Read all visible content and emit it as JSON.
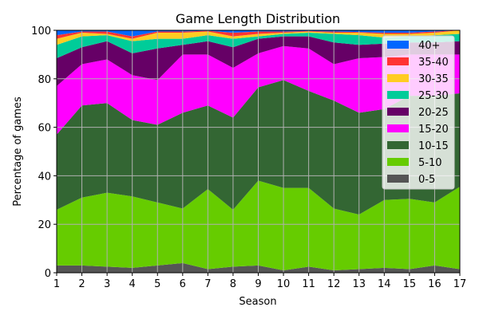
{
  "chart_data": {
    "type": "area",
    "stacked": true,
    "title": "Game Length Distribution",
    "xlabel": "Season",
    "ylabel": "Percentage of games",
    "x": [
      1,
      2,
      3,
      4,
      5,
      6,
      7,
      8,
      9,
      10,
      11,
      12,
      13,
      14,
      15,
      16,
      17
    ],
    "xlim": [
      1,
      17
    ],
    "ylim": [
      0,
      100
    ],
    "yticks": [
      0,
      20,
      40,
      60,
      80,
      100
    ],
    "grid": true,
    "legend_position": "top-right",
    "series": [
      {
        "name": "0-5",
        "color": "#555555",
        "values": [
          3,
          3,
          2.5,
          2,
          3,
          4,
          1.5,
          2.5,
          3,
          1,
          2.5,
          1,
          1.5,
          2,
          1.5,
          3,
          1.5
        ]
      },
      {
        "name": "5-10",
        "color": "#66cc00",
        "values": [
          23,
          28,
          30.5,
          29.5,
          26,
          22.5,
          33,
          23.5,
          35,
          34,
          32.5,
          25.5,
          22.5,
          28,
          29,
          26,
          34
        ]
      },
      {
        "name": "10-15",
        "color": "#336633",
        "values": [
          31,
          38,
          37,
          31.5,
          32,
          39.5,
          34.5,
          38,
          38.5,
          44.5,
          40,
          44.5,
          42,
          37.5,
          42.5,
          44,
          38.5
        ]
      },
      {
        "name": "15-20",
        "color": "#ff00ff",
        "values": [
          20,
          17,
          18,
          18.5,
          18.5,
          24,
          21,
          20.5,
          14,
          14,
          17.5,
          15,
          22.5,
          21.5,
          17,
          17,
          16
        ]
      },
      {
        "name": "20-25",
        "color": "#660066",
        "values": [
          11.5,
          7,
          7.5,
          9,
          13,
          4,
          5.5,
          8.5,
          6,
          4,
          5,
          9,
          5.5,
          5.5,
          5,
          5,
          5.5
        ]
      },
      {
        "name": "25-30",
        "color": "#00cc99",
        "values": [
          5.5,
          4.5,
          2.5,
          5,
          4,
          2.5,
          2.5,
          3.5,
          1,
          1,
          1.5,
          3.5,
          4,
          2.5,
          2.5,
          3,
          3
        ]
      },
      {
        "name": "30-35",
        "color": "#ffcc22",
        "values": [
          2.5,
          1.5,
          0.5,
          1,
          2.5,
          2.5,
          1.5,
          1,
          1,
          0.5,
          0.5,
          0.5,
          1,
          1.5,
          1,
          1,
          1.5
        ]
      },
      {
        "name": "35-40",
        "color": "#ff3333",
        "values": [
          1.5,
          0.5,
          1,
          1,
          0.5,
          0.5,
          0.3,
          1.5,
          1,
          0.5,
          0.2,
          0.5,
          0.3,
          0.5,
          0.5,
          0.5,
          0
        ]
      },
      {
        "name": "40+",
        "color": "#0066ff",
        "values": [
          2,
          0.5,
          0.5,
          2.5,
          0.5,
          0.5,
          0.2,
          1,
          0.5,
          0.5,
          0.3,
          0.5,
          0.7,
          1,
          1,
          0.5,
          0
        ]
      }
    ]
  }
}
